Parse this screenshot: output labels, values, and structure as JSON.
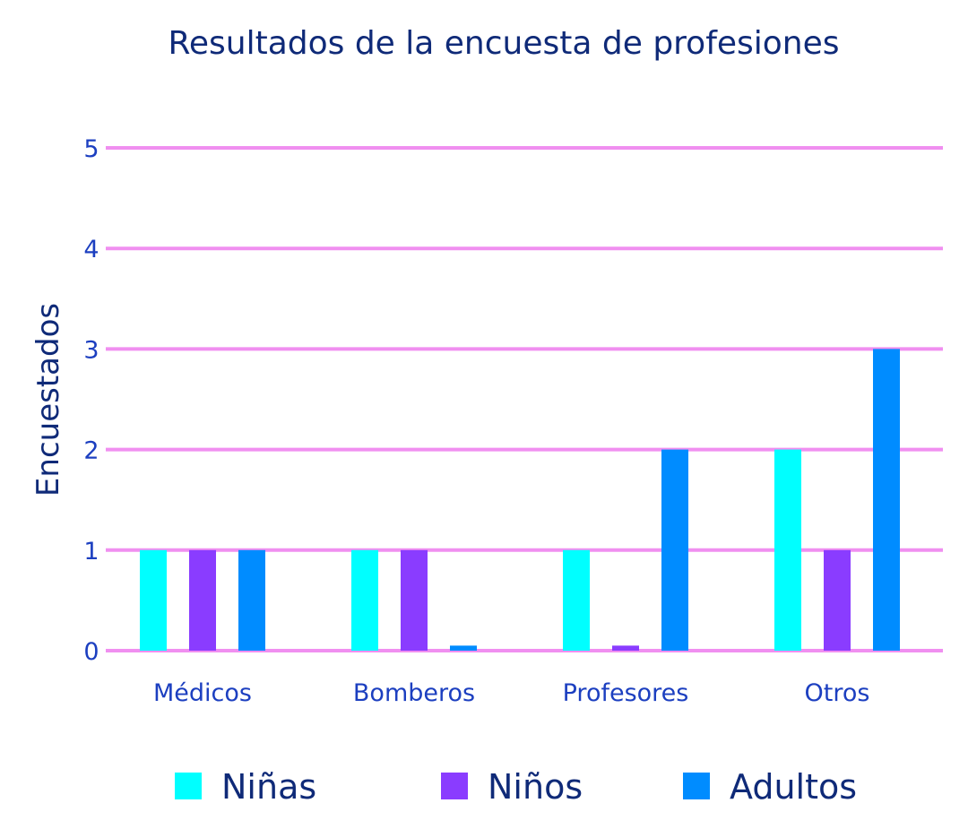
{
  "colors": {
    "grid": "#f08ff0",
    "title": "#0f2a78",
    "tick": "#1c3fc0"
  },
  "chart_data": {
    "type": "bar",
    "title": "Resultados de la encuesta de profesiones",
    "ylabel": "Encuestados",
    "xlabel": "",
    "categories": [
      "Médicos",
      "Bomberos",
      "Profesores",
      "Otros"
    ],
    "y_ticks": [
      "0",
      "1",
      "2",
      "3",
      "4",
      "5"
    ],
    "ylim": [
      0,
      5
    ],
    "grid": true,
    "legend_position": "bottom",
    "series": [
      {
        "name": "Niñas",
        "color": "#00ffff",
        "values": [
          1,
          1,
          1,
          2
        ]
      },
      {
        "name": "Niños",
        "color": "#8a3cff",
        "values": [
          1,
          1,
          0.05,
          1
        ]
      },
      {
        "name": "Adultos",
        "color": "#008cff",
        "values": [
          1,
          0.05,
          2,
          3
        ]
      }
    ]
  }
}
